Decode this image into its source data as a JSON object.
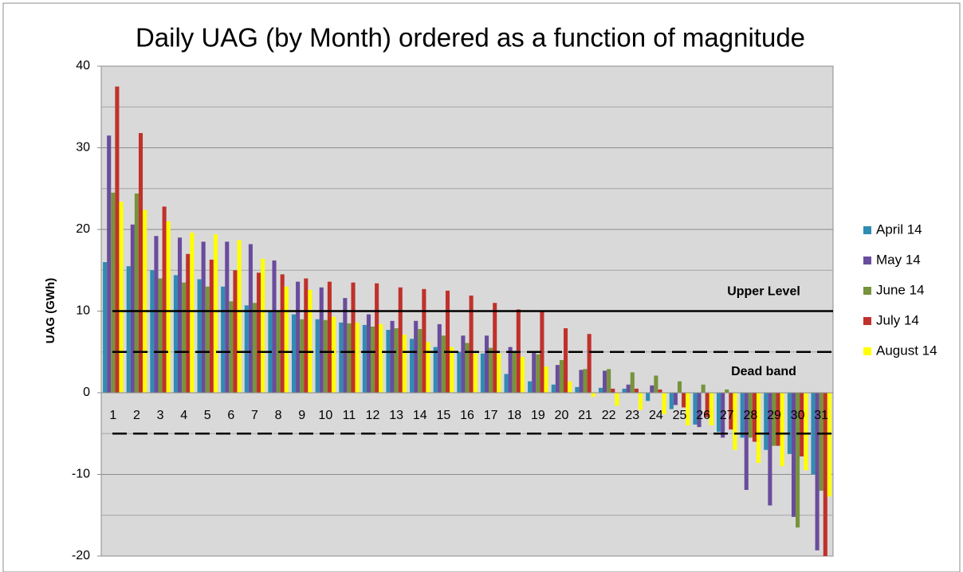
{
  "chart_data": {
    "type": "bar",
    "title": "Daily UAG (by Month) ordered as a function of magnitude",
    "y_label": "UAG (GWh)",
    "categories": [
      "1",
      "2",
      "3",
      "4",
      "5",
      "6",
      "7",
      "8",
      "9",
      "10",
      "11",
      "12",
      "13",
      "14",
      "15",
      "16",
      "17",
      "18",
      "19",
      "20",
      "21",
      "22",
      "23",
      "24",
      "25",
      "26",
      "27",
      "28",
      "29",
      "30",
      "31"
    ],
    "series": [
      {
        "name": "April 14",
        "color": "#2f8cb2",
        "values": [
          16,
          15.5,
          15,
          14.4,
          13.9,
          13,
          10.7,
          10,
          9.6,
          9,
          8.6,
          8.3,
          7.7,
          6.6,
          5.6,
          5,
          4.8,
          2.3,
          1.4,
          1,
          0.7,
          0.6,
          0.5,
          -1,
          -2,
          -3.9,
          -4.8,
          -5.5,
          -7,
          -7.5,
          -10
        ]
      },
      {
        "name": "May 14",
        "color": "#6a4c9c",
        "values": [
          31.5,
          20.6,
          19.2,
          19,
          18.5,
          18.5,
          18.2,
          16.2,
          13.6,
          12.9,
          11.6,
          9.6,
          8.8,
          8.8,
          8.4,
          7,
          7,
          5.6,
          4.9,
          3.4,
          2.8,
          2.7,
          1,
          0.9,
          -1.5,
          -4.2,
          -5.5,
          -11.9,
          -13.8,
          -15.2,
          -19.3
        ]
      },
      {
        "name": "June 14",
        "color": "#77933c",
        "values": [
          24.5,
          24.4,
          14,
          13.5,
          13,
          11.2,
          11,
          10,
          9,
          8.9,
          8.5,
          8.1,
          7.9,
          7.8,
          7,
          6.1,
          5.5,
          5,
          4.7,
          4,
          2.9,
          2.9,
          2.5,
          2.1,
          1.4,
          1,
          0.4,
          -5.5,
          -6.5,
          -16.5,
          -12
        ]
      },
      {
        "name": "July 14",
        "color": "#c0312b",
        "values": [
          37.5,
          31.8,
          22.8,
          17,
          16.3,
          15,
          14.7,
          14.5,
          14,
          13.6,
          13.5,
          13.4,
          12.9,
          12.7,
          12.5,
          11.9,
          11,
          10.2,
          10,
          7.9,
          7.2,
          0.5,
          0.5,
          0.4,
          -1.8,
          -3,
          -4.5,
          -6,
          -6.5,
          -7.8,
          -20.3
        ]
      },
      {
        "name": "August 14",
        "color": "#ffff00",
        "values": [
          23.4,
          22.4,
          21,
          19.6,
          19.4,
          18.7,
          16.4,
          13,
          12.6,
          9.3,
          8.6,
          8.4,
          7.1,
          6.2,
          5.6,
          4.8,
          4.8,
          4.4,
          3.2,
          1.4,
          -0.5,
          -1.6,
          -2.1,
          -2.6,
          -4,
          -4,
          -7,
          -8.6,
          -9,
          -9.5,
          -12.7
        ]
      }
    ],
    "reference_lines": [
      {
        "value": 10,
        "label": "Upper Level",
        "dashed": false
      },
      {
        "value": 5,
        "label": "Dead band",
        "dashed": true
      },
      {
        "value": -5,
        "dashed": true
      }
    ],
    "ylim": [
      -20,
      40
    ],
    "yticks": [
      -20,
      -10,
      0,
      10,
      20,
      30,
      40
    ],
    "grid": true,
    "legend": "right"
  }
}
